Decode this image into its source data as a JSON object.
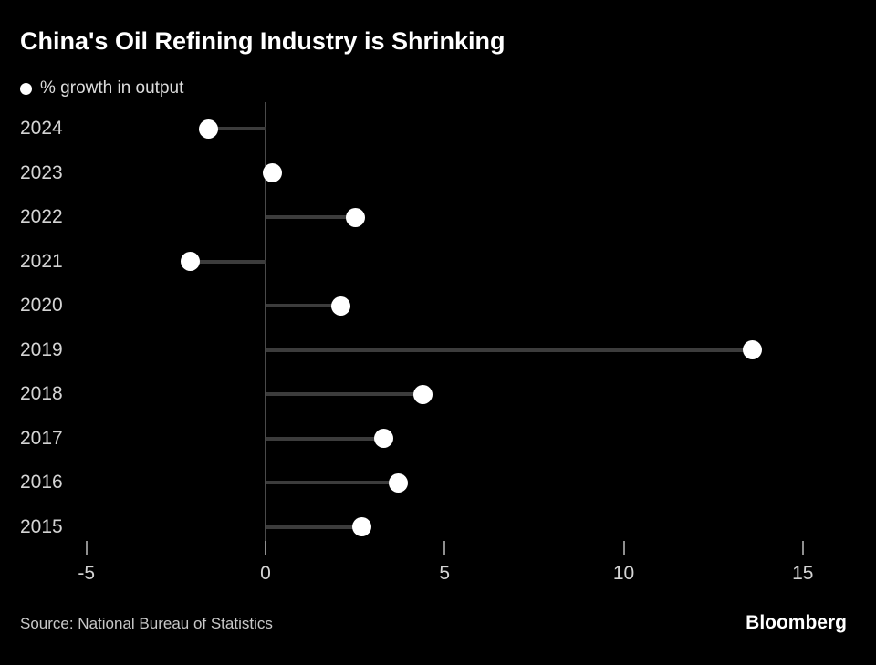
{
  "header": {
    "title": "China's Oil Refining Industry is Shrinking"
  },
  "legend": {
    "marker": "circle",
    "label": "% growth in output"
  },
  "footer": {
    "source": "Source: National Bureau of Statistics",
    "brand": "Bloomberg"
  },
  "colors": {
    "background": "#000000",
    "title_text": "#ffffff",
    "label_text": "#d4d4d4",
    "dot_fill": "#ffffff",
    "stem": "#3c3c3c",
    "zero_axis": "#4a4a4a",
    "tick": "#8f8f8f"
  },
  "chart_data": {
    "type": "scatter",
    "variant": "horizontal-lollipop",
    "title": "China's Oil Refining Industry is Shrinking",
    "series_label": "% growth in output",
    "categories": [
      "2024",
      "2023",
      "2022",
      "2021",
      "2020",
      "2019",
      "2018",
      "2017",
      "2016",
      "2015"
    ],
    "values": [
      -1.6,
      0.2,
      2.5,
      -2.1,
      2.1,
      13.6,
      4.4,
      3.3,
      3.7,
      2.7
    ],
    "unit": "%",
    "baseline": 0,
    "xlabel": "",
    "ylabel": "",
    "xticks": [
      -5,
      0,
      5,
      10,
      15
    ],
    "xlim": [
      -6.9,
      17
    ],
    "grid": false,
    "legend_position": "top-left"
  }
}
